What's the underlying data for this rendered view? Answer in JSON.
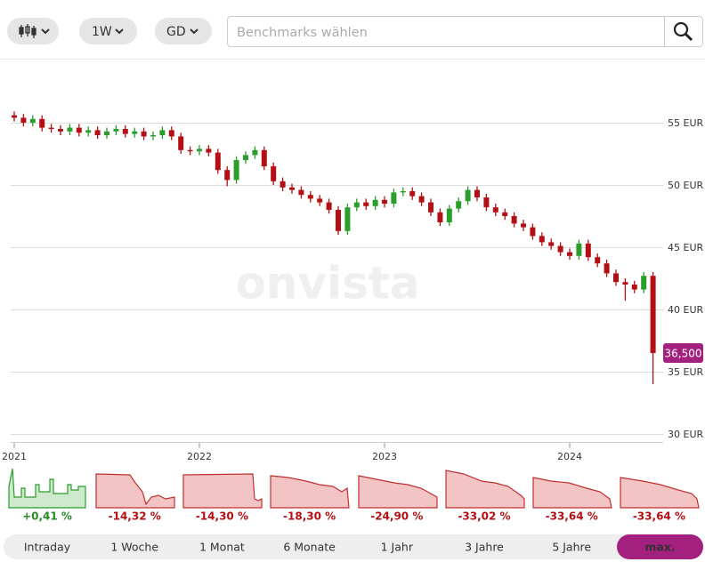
{
  "toolbar": {
    "interval": "1W",
    "indicator": "GD",
    "search_placeholder": "Benchmarks wählen"
  },
  "watermark": "onvista",
  "chart_data": {
    "type": "candlestick",
    "x": [
      2021.0,
      2021.05,
      2021.1,
      2021.15,
      2021.2,
      2021.25,
      2021.3,
      2021.35,
      2021.4,
      2021.45,
      2021.5,
      2021.55,
      2021.6,
      2021.65,
      2021.7,
      2021.75,
      2021.8,
      2021.85,
      2021.9,
      2021.95,
      2022.0,
      2022.05,
      2022.1,
      2022.15,
      2022.2,
      2022.25,
      2022.3,
      2022.35,
      2022.4,
      2022.45,
      2022.5,
      2022.55,
      2022.6,
      2022.65,
      2022.7,
      2022.75,
      2022.8,
      2022.85,
      2022.9,
      2022.95,
      2023.0,
      2023.05,
      2023.1,
      2023.15,
      2023.2,
      2023.25,
      2023.3,
      2023.35,
      2023.4,
      2023.45,
      2023.5,
      2023.55,
      2023.6,
      2023.65,
      2023.7,
      2023.75,
      2023.8,
      2023.85,
      2023.9,
      2023.95,
      2024.0,
      2024.05,
      2024.1,
      2024.15,
      2024.2,
      2024.25,
      2024.3,
      2024.35,
      2024.4,
      2024.45
    ],
    "open": [
      55.6,
      55.4,
      55.0,
      55.3,
      54.6,
      54.5,
      54.3,
      54.6,
      54.2,
      54.4,
      54.0,
      54.3,
      54.5,
      54.1,
      54.3,
      53.9,
      54.0,
      54.4,
      53.9,
      52.8,
      52.7,
      52.9,
      52.6,
      51.2,
      50.4,
      52.0,
      52.4,
      52.8,
      51.5,
      50.3,
      49.8,
      49.6,
      49.2,
      48.9,
      48.6,
      48.0,
      46.3,
      48.2,
      48.6,
      48.3,
      48.8,
      48.5,
      49.4,
      49.5,
      49.1,
      48.6,
      47.8,
      47.0,
      48.1,
      48.7,
      49.6,
      49.0,
      48.2,
      47.8,
      47.5,
      46.9,
      46.6,
      45.9,
      45.4,
      45.1,
      44.6,
      44.3,
      45.3,
      44.2,
      43.7,
      42.9,
      42.2,
      42.0,
      41.6,
      42.7
    ],
    "high": [
      55.9,
      55.7,
      55.6,
      55.6,
      54.9,
      54.8,
      54.9,
      54.9,
      54.7,
      54.7,
      54.6,
      54.8,
      54.8,
      54.6,
      54.6,
      54.3,
      54.7,
      54.7,
      54.2,
      53.1,
      53.2,
      53.2,
      52.9,
      51.5,
      52.3,
      52.7,
      53.1,
      53.1,
      51.8,
      50.6,
      50.1,
      49.9,
      49.5,
      49.2,
      48.9,
      48.3,
      48.5,
      48.9,
      48.9,
      49.1,
      49.1,
      49.7,
      49.8,
      49.8,
      49.4,
      48.9,
      48.1,
      48.4,
      49.0,
      49.9,
      49.9,
      49.3,
      48.5,
      48.1,
      47.8,
      47.2,
      46.9,
      46.2,
      45.7,
      45.4,
      44.9,
      45.6,
      45.6,
      44.5,
      44.0,
      43.2,
      42.5,
      42.3,
      43.0,
      43.0
    ],
    "low": [
      55.1,
      54.7,
      54.7,
      54.3,
      54.2,
      54.0,
      54.0,
      53.9,
      53.9,
      53.7,
      53.7,
      54.0,
      53.8,
      53.8,
      53.6,
      53.6,
      53.7,
      53.6,
      52.5,
      52.4,
      52.4,
      52.3,
      50.9,
      49.9,
      50.1,
      51.7,
      52.1,
      51.2,
      50.0,
      49.5,
      49.3,
      48.9,
      48.6,
      48.3,
      47.7,
      46.0,
      46.0,
      47.9,
      48.0,
      48.0,
      48.2,
      48.2,
      49.1,
      48.8,
      48.3,
      47.5,
      46.7,
      46.7,
      47.8,
      48.4,
      48.7,
      47.9,
      47.5,
      47.2,
      46.6,
      46.3,
      45.6,
      45.1,
      44.8,
      44.3,
      44.0,
      44.0,
      43.9,
      43.4,
      42.6,
      41.9,
      40.7,
      41.3,
      41.3,
      34.0
    ],
    "close": [
      55.4,
      55.0,
      55.3,
      54.6,
      54.5,
      54.3,
      54.6,
      54.2,
      54.4,
      54.0,
      54.3,
      54.5,
      54.1,
      54.3,
      53.9,
      54.0,
      54.4,
      53.9,
      52.8,
      52.7,
      52.9,
      52.6,
      51.2,
      50.4,
      52.0,
      52.4,
      52.8,
      51.5,
      50.3,
      49.8,
      49.6,
      49.2,
      48.9,
      48.6,
      48.0,
      46.3,
      48.2,
      48.6,
      48.3,
      48.8,
      48.5,
      49.4,
      49.5,
      49.1,
      48.6,
      47.8,
      47.0,
      48.1,
      48.7,
      49.6,
      49.0,
      48.2,
      47.8,
      47.5,
      46.9,
      46.6,
      45.9,
      45.4,
      45.1,
      44.6,
      44.3,
      45.3,
      44.2,
      43.7,
      42.9,
      42.2,
      42.0,
      41.6,
      42.7,
      36.5
    ],
    "up_color": "#2a9d2a",
    "down_color": "#b40f14",
    "current_price": {
      "value": 36.5,
      "label": "36,500"
    },
    "price_color": "#a3207f",
    "xlim": [
      2021,
      2024.5
    ],
    "xticks": [
      2021,
      2022,
      2023,
      2024
    ],
    "ylim": [
      29.5,
      60
    ],
    "yticks": [
      {
        "value": 30,
        "label": "30 EUR"
      },
      {
        "value": 35,
        "label": "35 EUR"
      },
      {
        "value": 40,
        "label": "40 EUR"
      },
      {
        "value": 45,
        "label": "45 EUR"
      },
      {
        "value": 50,
        "label": "50 EUR"
      },
      {
        "value": 55,
        "label": "55 EUR"
      }
    ],
    "grid": true
  },
  "periods": [
    {
      "label": "Intraday",
      "change": "+0,41 %"
    },
    {
      "label": "1 Woche",
      "change": "-14,32 %"
    },
    {
      "label": "1 Monat",
      "change": "-14,30 %"
    },
    {
      "label": "6 Monate",
      "change": "-18,30 %"
    },
    {
      "label": "1 Jahr",
      "change": "-24,90 %"
    },
    {
      "label": "3 Jahre",
      "change": "-33,02 %"
    },
    {
      "label": "5 Jahre",
      "change": "-33,64 %"
    },
    {
      "label": "max.",
      "change": "-33,64 %"
    }
  ],
  "active_period": 7
}
